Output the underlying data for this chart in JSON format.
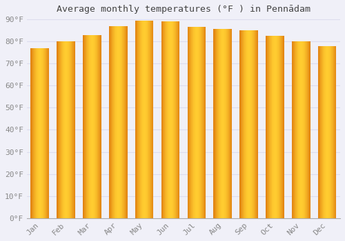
{
  "title": "Average monthly temperatures (°F ) in Pennādam",
  "months": [
    "Jan",
    "Feb",
    "Mar",
    "Apr",
    "May",
    "Jun",
    "Jul",
    "Aug",
    "Sep",
    "Oct",
    "Nov",
    "Dec"
  ],
  "values": [
    77,
    80,
    83,
    87,
    89.5,
    89,
    86.5,
    85.5,
    85,
    82.5,
    80,
    78
  ],
  "bar_color_left": "#E08000",
  "bar_color_center": "#FFD040",
  "bar_color_right": "#E08000",
  "background_color": "#F0F0F8",
  "grid_color": "#DDDDEE",
  "ylim": [
    0,
    90
  ],
  "yticks": [
    0,
    10,
    20,
    30,
    40,
    50,
    60,
    70,
    80,
    90
  ],
  "ytick_labels": [
    "0°F",
    "10°F",
    "20°F",
    "30°F",
    "40°F",
    "50°F",
    "60°F",
    "70°F",
    "80°F",
    "90°F"
  ],
  "title_fontsize": 9.5,
  "tick_fontsize": 8,
  "bar_width": 0.7,
  "figsize": [
    5.0,
    3.5
  ],
  "dpi": 100
}
